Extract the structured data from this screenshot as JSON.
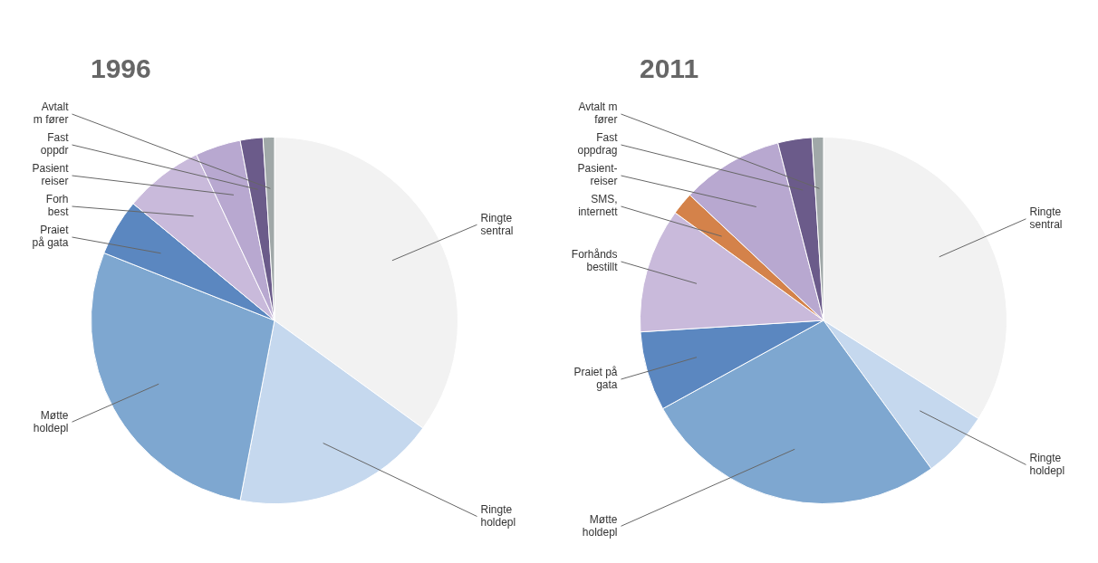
{
  "chart_data": [
    {
      "type": "pie",
      "title": "1996",
      "categories": [
        "Ringte\nsentral",
        "Ringte\nholdepl",
        "Møtte\nholdepl",
        "Praiet\npå gata",
        "Forh\nbest",
        "Pasient\nreiser",
        "Fast\noppdr",
        "Avtalt\nm fører"
      ],
      "values": [
        35,
        18,
        28,
        5,
        7,
        4,
        2,
        1
      ],
      "colors": [
        "#f2f2f2",
        "#c5d8ee",
        "#7ea7d0",
        "#5b87c0",
        "#c9badb",
        "#b8a8d0",
        "#6b5b8a",
        "#a0a8a8"
      ]
    },
    {
      "type": "pie",
      "title": "2011",
      "categories": [
        "Ringte\nsentral",
        "Ringte\nholdepl",
        "Møtte\nholdepl",
        "Praiet på\ngata",
        "Forhånds\nbestillt",
        "SMS,\ninternett",
        "Pasient-\nreiser",
        "Fast\noppdrag",
        "Avtalt m\nfører"
      ],
      "values": [
        34,
        6,
        27,
        7,
        11,
        2,
        9,
        3,
        1
      ],
      "colors": [
        "#f2f2f2",
        "#c5d8ee",
        "#7ea7d0",
        "#5b87c0",
        "#c9badb",
        "#d4824a",
        "#b8a8d0",
        "#6b5b8a",
        "#a0a8a8"
      ]
    }
  ]
}
